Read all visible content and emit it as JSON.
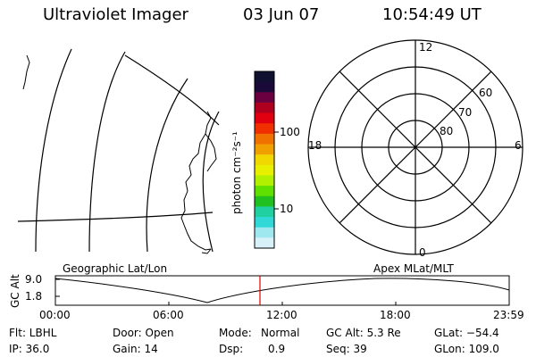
{
  "header": {
    "title": "Ultraviolet Imager",
    "date": "03 Jun 07",
    "time": "10:54:49 UT"
  },
  "colorbar": {
    "label": "photon cm⁻²s⁻¹",
    "tick_100": "100",
    "tick_10": "10",
    "colors": [
      "#101030",
      "#1a0a3a",
      "#6a0040",
      "#b00020",
      "#e00010",
      "#f03000",
      "#f07000",
      "#f0a000",
      "#f0d800",
      "#e8f000",
      "#b0f000",
      "#60e000",
      "#20c020",
      "#20d0a0",
      "#30d8d8",
      "#a0e8f0",
      "#d8f0f8"
    ]
  },
  "geo_panel": {
    "label": "Geographic Lat/Lon"
  },
  "polar_panel": {
    "label": "Apex MLat/MLT",
    "mlt_labels": {
      "top": "12",
      "left": "18",
      "right": "6",
      "bottom": "0"
    },
    "lat_labels": [
      "60",
      "70",
      "80"
    ]
  },
  "altitude_plot": {
    "ylabel": "GC Alt",
    "yticks": [
      "9.0",
      "1.8"
    ],
    "xticks": [
      "00:00",
      "06:00",
      "12:00",
      "18:00",
      "23:59"
    ]
  },
  "status": {
    "flt": "Flt: LBHL",
    "ip": "IP: 36.0",
    "door": "Door: Open",
    "gain": "Gain: 14",
    "mode_label": "Mode:",
    "mode_value": "Normal",
    "dsp_label": "Dsp:",
    "dsp_value": "0.9",
    "gc_alt": "GC Alt: 5.3 Re",
    "seq": "Seq: 39",
    "glat": "GLat: −54.4",
    "glon": "GLon: 109.0"
  }
}
